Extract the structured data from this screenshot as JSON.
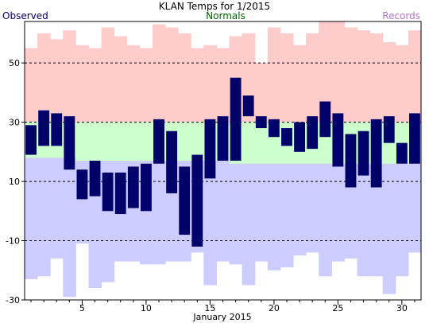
{
  "chart_data": {
    "type": "bar",
    "title": "KLAN Temps for 1/2015",
    "xlabel": "January 2015",
    "ylabel": "",
    "legend": {
      "observed": "Observed",
      "normals": "Normals",
      "records": "Records",
      "placement": "top"
    },
    "colors": {
      "observed": "#000066",
      "normals": "#006600",
      "records": "#bb77cc",
      "observed_bar": "#00006b",
      "normal_band": "#ccffcc",
      "record_high_band": "#ffcccc",
      "record_low_band": "#ccccff",
      "grid": "#000000"
    },
    "ylim": [
      -30,
      64
    ],
    "yticks": [
      -30,
      -10,
      10,
      30,
      50
    ],
    "xticks": [
      5,
      10,
      15,
      20,
      25,
      30
    ],
    "grid": "horizontal dashed",
    "days": [
      1,
      2,
      3,
      4,
      5,
      6,
      7,
      8,
      9,
      10,
      11,
      12,
      13,
      14,
      15,
      16,
      17,
      18,
      19,
      20,
      21,
      22,
      23,
      24,
      25,
      26,
      27,
      28,
      29,
      30,
      31
    ],
    "observed_high": [
      29,
      34,
      33,
      32,
      14,
      17,
      13,
      13,
      15,
      16,
      31,
      27,
      15,
      19,
      31,
      32,
      45,
      39,
      32,
      31,
      28,
      30,
      32,
      37,
      33,
      26,
      27,
      31,
      32,
      23,
      33
    ],
    "observed_low": [
      19,
      22,
      22,
      14,
      4,
      5,
      0,
      -1,
      1,
      0,
      16,
      6,
      -8,
      -12,
      11,
      17,
      17,
      32,
      28,
      25,
      22,
      20,
      21,
      25,
      15,
      8,
      12,
      8,
      23,
      16,
      16
    ],
    "normal_high": [
      30,
      30,
      30,
      30,
      30,
      30,
      30,
      30,
      30,
      30,
      30,
      30,
      30,
      30,
      30,
      30,
      30,
      30,
      30,
      30,
      30,
      30,
      30,
      30,
      30,
      30,
      30,
      30,
      30,
      30,
      30
    ],
    "normal_low": [
      18,
      18,
      18,
      18,
      17,
      17,
      17,
      17,
      17,
      17,
      17,
      17,
      17,
      17,
      17,
      17,
      16,
      16,
      16,
      16,
      16,
      16,
      16,
      16,
      16,
      16,
      16,
      16,
      16,
      16,
      16
    ],
    "record_high": [
      55,
      60,
      58,
      61,
      56,
      55,
      62,
      59,
      56,
      55,
      63,
      62,
      60,
      55,
      56,
      55,
      59,
      60,
      50,
      62,
      60,
      56,
      60,
      65,
      64,
      62,
      61,
      60,
      57,
      56,
      61
    ],
    "record_low": [
      -23,
      -22,
      -16,
      -29,
      -11,
      -26,
      -24,
      -17,
      -17,
      -18,
      -18,
      -17,
      -17,
      -14,
      -25,
      -17,
      -18,
      -25,
      -17,
      -20,
      -19,
      -15,
      -14,
      -22,
      -17,
      -16,
      -22,
      -22,
      -28,
      -22,
      -14
    ]
  }
}
